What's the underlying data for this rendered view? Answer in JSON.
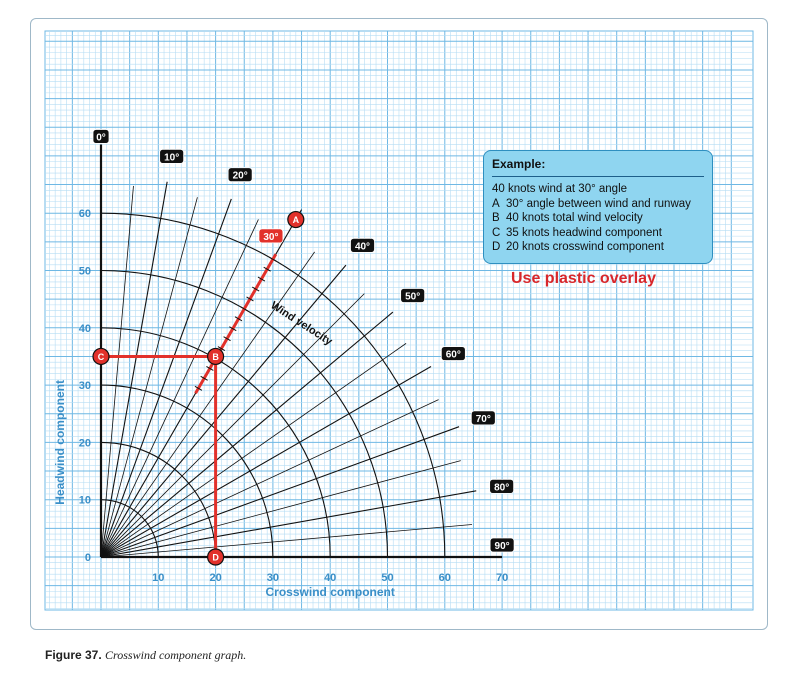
{
  "chart_data": {
    "type": "polar-crosswind",
    "xlabel": "Crosswind component",
    "ylabel": "Headwind component",
    "xlim": [
      0,
      70
    ],
    "ylim": [
      0,
      65
    ],
    "x_ticks": [
      "10",
      "20",
      "30",
      "40",
      "50",
      "60",
      "70"
    ],
    "y_ticks": [
      "0",
      "10",
      "20",
      "30",
      "40",
      "50",
      "60"
    ],
    "arc_radii_knots": [
      10,
      20,
      30,
      40,
      50,
      60
    ],
    "angle_labels": [
      "0°",
      "10°",
      "20°",
      "30°",
      "40°",
      "50°",
      "60°",
      "70°",
      "80°",
      "90°"
    ],
    "angle_values_deg": [
      0,
      10,
      20,
      30,
      40,
      50,
      60,
      70,
      80,
      90
    ],
    "radial_lines_every_deg": 5,
    "velocity_label": "Wind velocity",
    "highlight_angle_deg": 30,
    "highlight_angle_label": "30°",
    "points": [
      {
        "label": "A",
        "note": "30° angle between wind and runway",
        "angle_deg": 30
      },
      {
        "label": "B",
        "x": 20,
        "y": 35,
        "note": "40 knots total wind velocity"
      },
      {
        "label": "C",
        "x": 0,
        "y": 35,
        "note": "35 knots headwind component"
      },
      {
        "label": "D",
        "x": 20,
        "y": 0,
        "note": "20 knots crosswind component"
      }
    ],
    "grid": true
  },
  "example": {
    "title": "Example:",
    "intro": "40 knots wind at 30° angle",
    "lines": [
      {
        "key": "A",
        "text": "30° angle between wind and runway"
      },
      {
        "key": "B",
        "text": "40 knots total wind velocity"
      },
      {
        "key": "C",
        "text": "35 knots headwind component"
      },
      {
        "key": "D",
        "text": "20 knots crosswind component"
      }
    ]
  },
  "overlay_note": "Use plastic overlay",
  "caption": {
    "label": "Figure 37.",
    "text": "Crosswind component graph."
  },
  "colors": {
    "grid_fine": "#b6ddf4",
    "grid_major": "#6fb8e4",
    "axis_text": "#3a8fc8",
    "highlight": "#e2312b",
    "box_fill": "#8fd5f0"
  }
}
